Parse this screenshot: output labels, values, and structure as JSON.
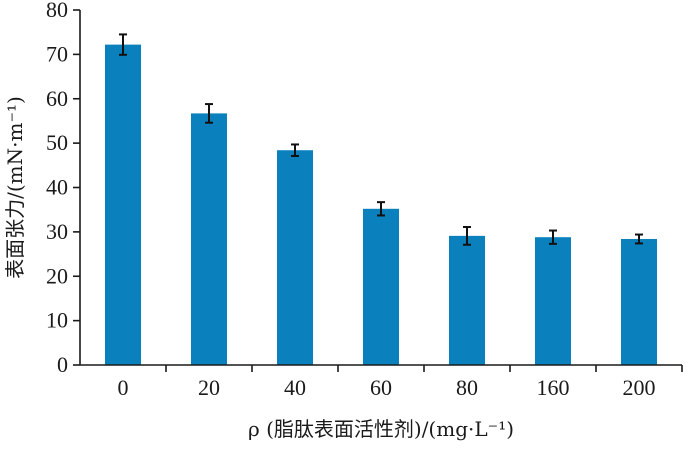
{
  "chart_data": {
    "type": "bar",
    "categories": [
      "0",
      "20",
      "40",
      "60",
      "80",
      "160",
      "200"
    ],
    "series": [
      {
        "values": [
          72.2,
          56.7,
          48.4,
          35.2,
          29.1,
          28.8,
          28.4
        ],
        "errors": [
          2.3,
          2.1,
          1.3,
          1.5,
          2.0,
          1.5,
          1.0
        ],
        "color": "#0a80bd"
      }
    ],
    "ylim": [
      0,
      80
    ],
    "yticks": [
      "0",
      "10",
      "20",
      "30",
      "40",
      "50",
      "60",
      "70",
      "80"
    ],
    "xlabel": "ρ (脂肽表面活性剂)/(mg·L⁻¹)",
    "ylabel": "表面张力/(mN·m⁻¹)",
    "grid": false,
    "legend": false
  }
}
